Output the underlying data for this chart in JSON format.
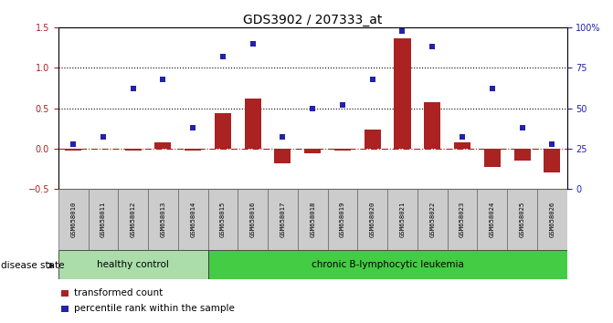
{
  "title": "GDS3902 / 207333_at",
  "samples": [
    "GSM658010",
    "GSM658011",
    "GSM658012",
    "GSM658013",
    "GSM658014",
    "GSM658015",
    "GSM658016",
    "GSM658017",
    "GSM658018",
    "GSM658019",
    "GSM658020",
    "GSM658021",
    "GSM658022",
    "GSM658023",
    "GSM658024",
    "GSM658025",
    "GSM658026"
  ],
  "bar_values": [
    -0.03,
    0.0,
    -0.02,
    0.08,
    -0.02,
    0.44,
    0.62,
    -0.18,
    -0.06,
    -0.02,
    0.23,
    1.37,
    0.58,
    0.08,
    -0.23,
    -0.15,
    -0.3
  ],
  "dot_pct": [
    28,
    32,
    62,
    68,
    38,
    82,
    90,
    32,
    50,
    52,
    68,
    98,
    88,
    32,
    62,
    38,
    28
  ],
  "bar_color": "#AA2222",
  "dot_color": "#2222AA",
  "left_ylim": [
    -0.5,
    1.5
  ],
  "right_ylim": [
    0,
    100
  ],
  "left_yticks": [
    -0.5,
    0.0,
    0.5,
    1.0,
    1.5
  ],
  "right_yticks": [
    0,
    25,
    50,
    75,
    100
  ],
  "right_yticklabels": [
    "0",
    "25",
    "50",
    "75",
    "100%"
  ],
  "hline_y": [
    0.5,
    1.0
  ],
  "group1_label": "healthy control",
  "group1_count": 5,
  "group2_label": "chronic B-lymphocytic leukemia",
  "group1_color": "#AADDAA",
  "group2_color": "#44CC44",
  "disease_state_label": "disease state",
  "legend_bar_label": "transformed count",
  "legend_dot_label": "percentile rank within the sample",
  "title_fontsize": 10,
  "tick_fontsize": 7,
  "label_fontsize": 8
}
